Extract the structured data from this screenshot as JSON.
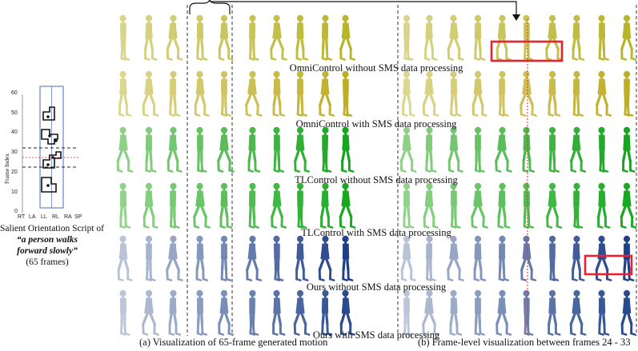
{
  "script_panel": {
    "y_axis_label": "Frame Index",
    "y_ticks": [
      "0",
      "10",
      "20",
      "30",
      "40",
      "50",
      "60"
    ],
    "x_ticks": [
      "RT",
      "LA",
      "LL",
      "RL",
      "RA",
      "SP"
    ],
    "caption_line1": "Salient Orientation Script of",
    "caption_line2": "“a person walks",
    "caption_line3": "forward slowly”",
    "caption_line4": "(65 frames)"
  },
  "rows": [
    {
      "caption": "OmniControl without SMS data processing",
      "light": "#d8d488",
      "dark": "#b9b52b"
    },
    {
      "caption": "OmniControl with SMS data processing",
      "light": "#dcd68e",
      "dark": "#bfae25"
    },
    {
      "caption": "TLControl without SMS data processing",
      "light": "#8fd087",
      "dark": "#17a51f"
    },
    {
      "caption": "TLControl with SMS data processing",
      "light": "#92d38b",
      "dark": "#18a920"
    },
    {
      "caption": "Ours without SMS data processing",
      "light": "#b8c3d6",
      "dark": "#1f3f86"
    },
    {
      "caption": "Ours with SMS data processing",
      "light": "#bcc6d8",
      "dark": "#284b8e"
    }
  ],
  "captions": {
    "a": "(a) Visualization of 65-frame generated motion",
    "b": "(b) Frame-level visualization between frames 24 - 33"
  },
  "colors": {
    "highlight": "#e8222e",
    "frame_line": "#e8222e",
    "script_box": "#4a6fb5"
  }
}
